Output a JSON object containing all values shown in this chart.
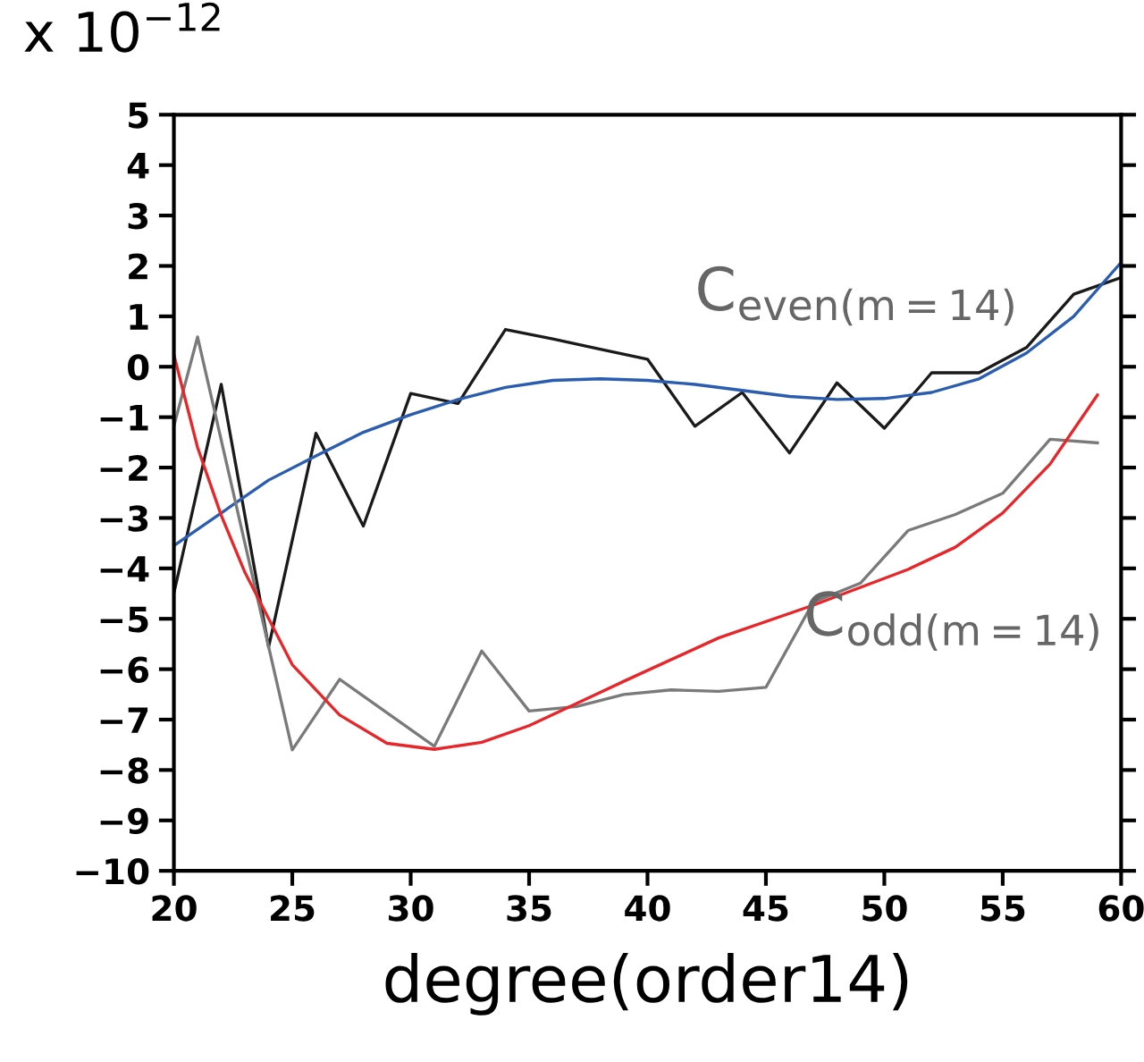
{
  "chart_data": {
    "type": "line",
    "xlabel": "degree(order14)",
    "ylabel": "x 10$^{−12}$",
    "xlim": [
      20,
      60
    ],
    "ylim": [
      -10,
      5
    ],
    "xticks": [
      20,
      25,
      30,
      35,
      40,
      45,
      50,
      55,
      60
    ],
    "yticks": [
      5,
      4,
      3,
      2,
      1,
      0,
      -1,
      -2,
      -3,
      -4,
      -5,
      -6,
      -7,
      -8,
      -9,
      -10
    ],
    "grid": false,
    "legend": false,
    "marker": "none",
    "line_style": "solid",
    "series": [
      {
        "color": "#1a1a1a",
        "x": [
          20,
          22,
          24,
          26,
          28,
          30,
          32,
          34,
          36,
          38,
          40,
          42,
          44,
          46,
          48,
          50,
          52,
          54,
          56,
          58,
          60
        ],
        "values": [
          -4.49,
          -0.35,
          -5.56,
          -1.32,
          -3.16,
          -0.53,
          -0.73,
          0.74,
          0.55,
          0.35,
          0.15,
          -1.18,
          -0.51,
          -1.71,
          -0.32,
          -1.22,
          -0.12,
          -0.12,
          0.38,
          1.44,
          1.77
        ]
      },
      {
        "color": "#2a5db0",
        "x": [
          20,
          22,
          24,
          26,
          28,
          30,
          32,
          34,
          36,
          38,
          40,
          42,
          44,
          46,
          48,
          50,
          52,
          54,
          56,
          58,
          60
        ],
        "values": [
          -3.55,
          -2.9,
          -2.25,
          -1.77,
          -1.3,
          -0.95,
          -0.65,
          -0.41,
          -0.27,
          -0.24,
          -0.27,
          -0.35,
          -0.47,
          -0.59,
          -0.65,
          -0.63,
          -0.51,
          -0.24,
          0.27,
          1.0,
          2.07
        ]
      },
      {
        "color": "#7a7a7a",
        "x": [
          20,
          21,
          25,
          27,
          31,
          33,
          35,
          37,
          39,
          41,
          43,
          45,
          47,
          49,
          51,
          53,
          55,
          57,
          59
        ],
        "values": [
          -1.18,
          0.59,
          -7.6,
          -6.2,
          -7.53,
          -5.64,
          -6.83,
          -6.74,
          -6.5,
          -6.41,
          -6.44,
          -6.36,
          -4.67,
          -4.29,
          -3.25,
          -2.93,
          -2.51,
          -1.44,
          -1.51
        ]
      },
      {
        "color": "#e8262a",
        "x": [
          20,
          21,
          22,
          23,
          25,
          27,
          29,
          31,
          33,
          35,
          37,
          39,
          43,
          47,
          51,
          53,
          55,
          57,
          59
        ],
        "values": [
          0.24,
          -1.6,
          -2.95,
          -4.08,
          -5.91,
          -6.91,
          -7.47,
          -7.59,
          -7.45,
          -7.12,
          -6.68,
          -6.24,
          -5.38,
          -4.73,
          -4.02,
          -3.58,
          -2.9,
          -1.93,
          -0.56
        ]
      }
    ],
    "annotations": [
      "C$_{even(m=14)}$",
      "C$_{odd(m=14)}$"
    ]
  }
}
